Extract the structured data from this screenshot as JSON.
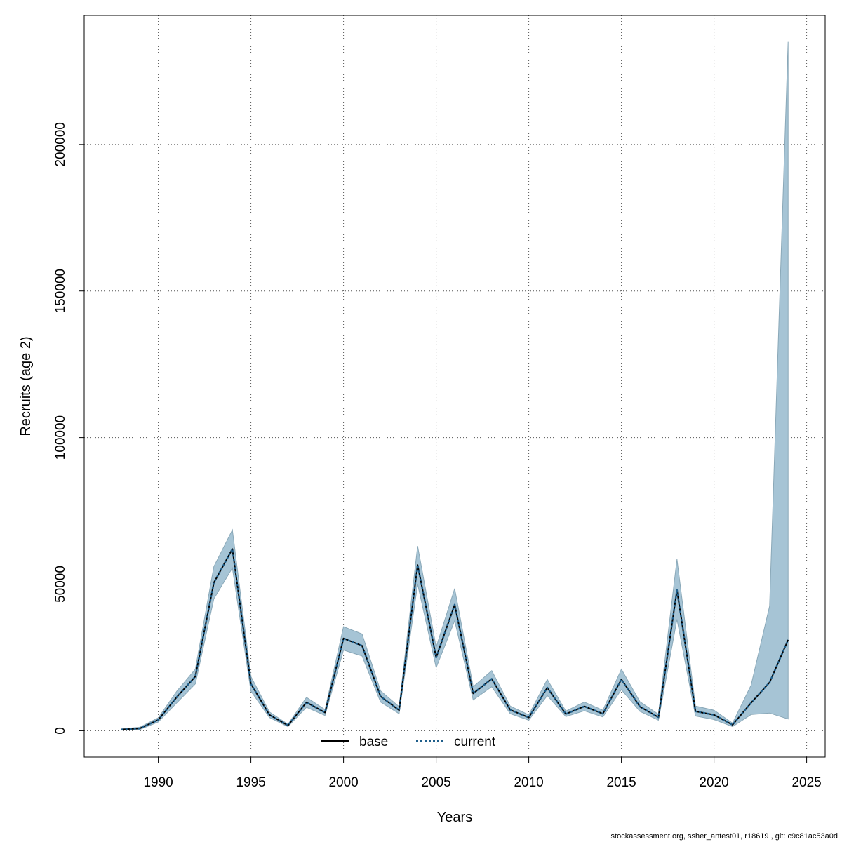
{
  "chart_data": {
    "type": "line",
    "xlabel": "Years",
    "ylabel": "Recruits (age 2)",
    "xlim": [
      1986,
      2026
    ],
    "ylim": [
      -9000,
      244000
    ],
    "xticks": [
      1990,
      1995,
      2000,
      2005,
      2010,
      2015,
      2020,
      2025
    ],
    "yticks": [
      0,
      50000,
      100000,
      150000,
      200000
    ],
    "grid": true,
    "legend_position": "bottom-center",
    "x": [
      1988,
      1989,
      1990,
      1991,
      1992,
      1993,
      1994,
      1995,
      1996,
      1997,
      1998,
      1999,
      2000,
      2001,
      2002,
      2003,
      2004,
      2005,
      2006,
      2007,
      2008,
      2009,
      2010,
      2011,
      2012,
      2013,
      2014,
      2015,
      2016,
      2017,
      2018,
      2019,
      2020,
      2021,
      2022,
      2023,
      2024
    ],
    "band": {
      "lower": [
        200,
        400,
        3000,
        9500,
        16000,
        45000,
        55500,
        13500,
        4500,
        1400,
        8000,
        5200,
        27500,
        25500,
        9800,
        5800,
        50000,
        21500,
        37500,
        10500,
        15000,
        5800,
        3600,
        12000,
        4800,
        6800,
        4700,
        14000,
        6600,
        3600,
        38000,
        5000,
        3800,
        1400,
        5500,
        6000,
        4000
      ],
      "upper": [
        600,
        1200,
        4400,
        13500,
        21000,
        56000,
        68500,
        18500,
        6400,
        2200,
        11400,
        7200,
        35500,
        33000,
        13600,
        8200,
        63000,
        28500,
        48500,
        15000,
        20500,
        8400,
        5400,
        17500,
        6700,
        9800,
        7000,
        21000,
        9900,
        5600,
        58500,
        8400,
        7000,
        2600,
        15500,
        42500,
        235000
      ],
      "color": "#a6c4d5",
      "edge_color": "#8aa8b8"
    },
    "series": [
      {
        "name": "base",
        "style": "solid",
        "color": "#000000",
        "values": [
          400,
          800,
          3700,
          11500,
          18500,
          50500,
          62000,
          16000,
          5400,
          1800,
          9700,
          6200,
          31500,
          29000,
          11700,
          7000,
          56500,
          25000,
          43000,
          12700,
          17700,
          7100,
          4500,
          14700,
          5700,
          8300,
          5800,
          17500,
          8200,
          4600,
          48000,
          6600,
          5400,
          2000,
          9500,
          16500,
          31000
        ]
      },
      {
        "name": "current",
        "style": "dashed",
        "color": "#1f5f8b",
        "values": [
          400,
          800,
          3700,
          11500,
          18500,
          50500,
          62000,
          16000,
          5400,
          1800,
          9700,
          6200,
          31500,
          29000,
          11700,
          7000,
          56500,
          25000,
          43000,
          12700,
          17700,
          7100,
          4500,
          14700,
          5700,
          8300,
          5800,
          17500,
          8200,
          4600,
          48000,
          6600,
          5400,
          2000,
          9500,
          16500,
          31000
        ]
      }
    ]
  },
  "footer": "stockassessment.org, ssher_antest01, r18619 , git: c9c81ac53a0d"
}
